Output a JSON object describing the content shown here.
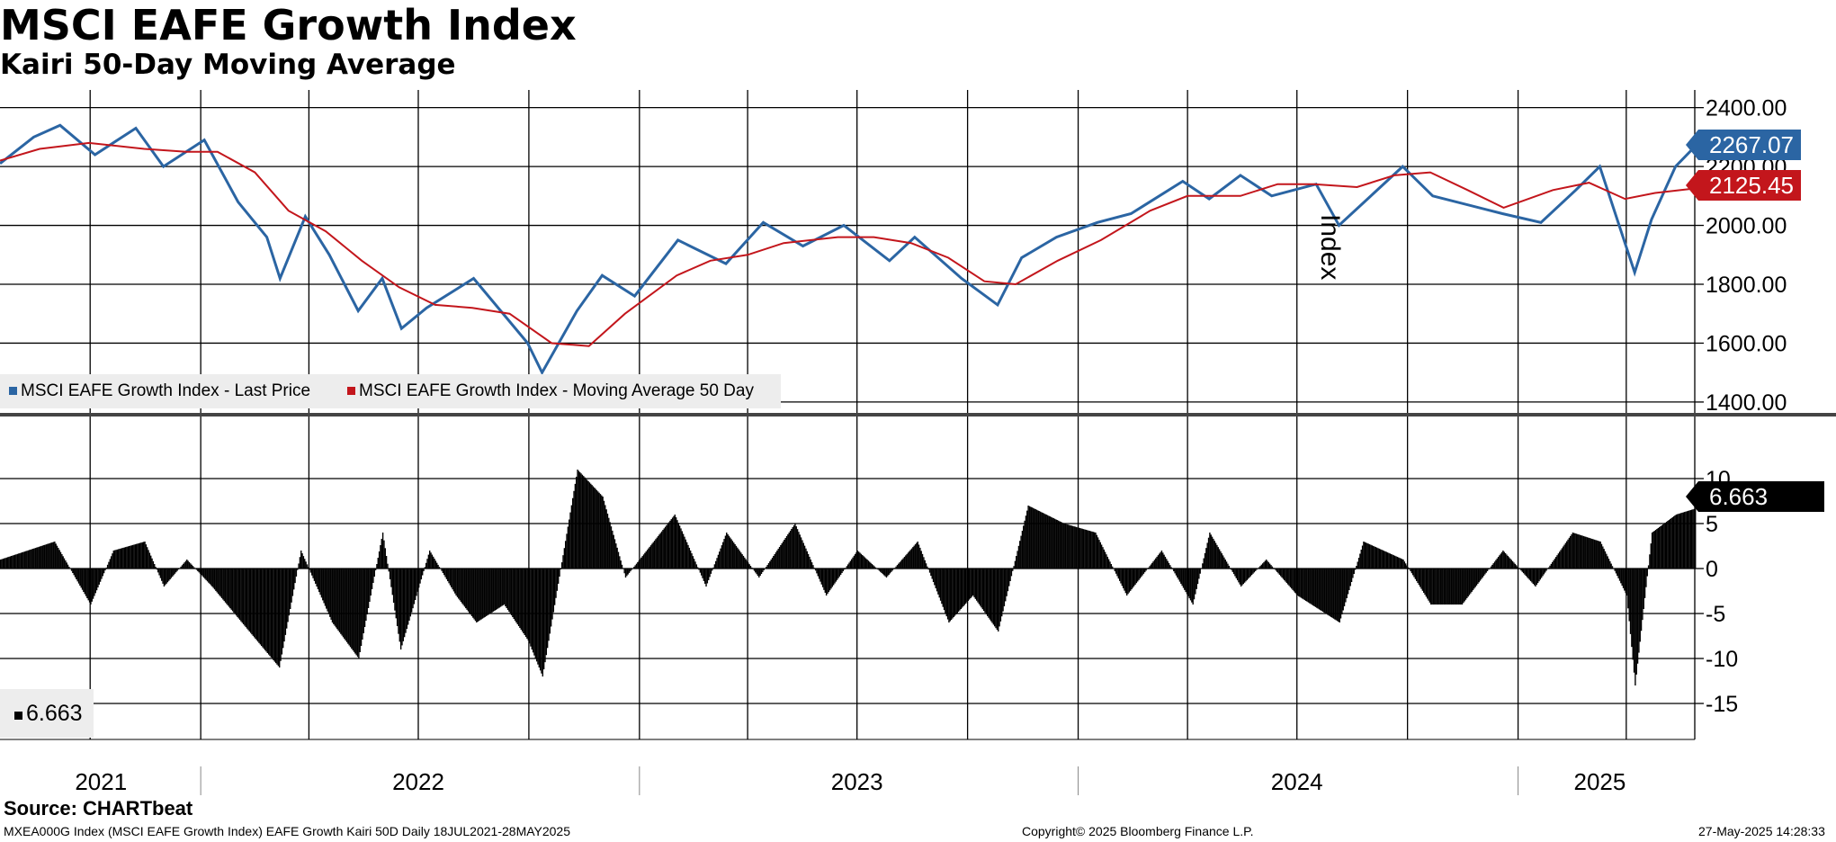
{
  "title": "MSCI EAFE Growth Index",
  "subtitle": "Kairi 50-Day Moving Average",
  "colors": {
    "price": "#2b65a3",
    "ma": "#c3161c",
    "kairi": "#000000",
    "grid": "#000000",
    "legend_bg": "#ededed"
  },
  "legend": {
    "price_label": "MSCI EAFE Growth Index - Last Price",
    "ma_label": "MSCI EAFE Growth Index - Moving Average 50 Day",
    "kairi_label": "6.663"
  },
  "value_tags": {
    "price": "2267.07",
    "ma": "2125.45",
    "kairi": "6.663"
  },
  "source": "Source: CHARTbeat",
  "footer": {
    "left": "MXEA000G Index (MSCI EAFE Growth Index) EAFE Growth Kairi 50D  Daily 18JUL2021-28MAY2025",
    "center": "Copyright© 2025 Bloomberg Finance L.P.",
    "right": "27-May-2025 14:28:33"
  },
  "chart_data": [
    {
      "type": "line",
      "ylabel": "Index",
      "ylim": [
        1360,
        2460
      ],
      "y_ticks": [
        "1400.00",
        "1600.00",
        "1800.00",
        "2000.00",
        "2200.00",
        "2400.00"
      ],
      "x_labels": [
        "2021",
        "2022",
        "2023",
        "2024",
        "2025"
      ],
      "x_range": [
        "2021-07-18",
        "2025-05-28"
      ],
      "series": [
        {
          "name": "MSCI EAFE Growth Index - Last Price",
          "key": "price",
          "x": [
            "2021-07-18",
            "2021-08-15",
            "2021-09-06",
            "2021-10-05",
            "2021-11-08",
            "2021-12-01",
            "2022-01-04",
            "2022-02-01",
            "2022-02-25",
            "2022-03-08",
            "2022-03-29",
            "2022-04-18",
            "2022-05-12",
            "2022-06-01",
            "2022-06-17",
            "2022-07-08",
            "2022-08-16",
            "2022-09-30",
            "2022-10-12",
            "2022-11-10",
            "2022-12-01",
            "2022-12-28",
            "2023-02-02",
            "2023-03-14",
            "2023-04-14",
            "2023-05-17",
            "2023-06-20",
            "2023-07-28",
            "2023-08-18",
            "2023-09-26",
            "2023-10-26",
            "2023-11-15",
            "2023-12-14",
            "2024-01-17",
            "2024-02-14",
            "2024-03-28",
            "2024-04-19",
            "2024-05-15",
            "2024-06-10",
            "2024-07-17",
            "2024-08-05",
            "2024-09-27",
            "2024-10-22",
            "2024-12-19",
            "2025-01-20",
            "2025-02-18",
            "2025-03-10",
            "2025-04-08",
            "2025-04-22",
            "2025-05-12",
            "2025-05-28"
          ],
          "y": [
            2210,
            2300,
            2340,
            2240,
            2330,
            2200,
            2290,
            2080,
            1960,
            1820,
            2030,
            1900,
            1710,
            1820,
            1650,
            1720,
            1820,
            1600,
            1500,
            1710,
            1830,
            1760,
            1950,
            1870,
            2010,
            1930,
            2000,
            1880,
            1960,
            1820,
            1730,
            1890,
            1960,
            2010,
            2040,
            2150,
            2090,
            2170,
            2100,
            2140,
            2000,
            2200,
            2100,
            2040,
            2010,
            2120,
            2200,
            1840,
            2020,
            2200,
            2267.07
          ]
        },
        {
          "name": "MSCI EAFE Growth Index - Moving Average 50 Day",
          "key": "ma",
          "x": [
            "2021-07-18",
            "2021-08-20",
            "2021-09-30",
            "2021-11-15",
            "2021-12-20",
            "2022-01-15",
            "2022-02-15",
            "2022-03-15",
            "2022-04-15",
            "2022-05-15",
            "2022-06-15",
            "2022-07-15",
            "2022-08-15",
            "2022-09-15",
            "2022-10-20",
            "2022-11-20",
            "2022-12-20",
            "2023-02-01",
            "2023-03-01",
            "2023-04-01",
            "2023-05-01",
            "2023-06-15",
            "2023-07-15",
            "2023-08-15",
            "2023-09-15",
            "2023-10-15",
            "2023-11-10",
            "2023-12-15",
            "2024-01-20",
            "2024-03-01",
            "2024-04-01",
            "2024-05-15",
            "2024-06-15",
            "2024-07-15",
            "2024-08-20",
            "2024-09-20",
            "2024-10-20",
            "2024-11-20",
            "2024-12-20",
            "2025-01-30",
            "2025-03-01",
            "2025-03-31",
            "2025-04-25",
            "2025-05-28"
          ],
          "y": [
            2220,
            2260,
            2280,
            2260,
            2250,
            2250,
            2180,
            2050,
            1980,
            1880,
            1790,
            1730,
            1720,
            1700,
            1600,
            1590,
            1700,
            1830,
            1880,
            1900,
            1940,
            1960,
            1960,
            1940,
            1890,
            1810,
            1800,
            1880,
            1950,
            2050,
            2100,
            2100,
            2140,
            2140,
            2130,
            2170,
            2180,
            2120,
            2060,
            2120,
            2145,
            2090,
            2110,
            2125.45
          ]
        }
      ]
    },
    {
      "type": "bar",
      "ylim": [
        -19,
        17
      ],
      "y_ticks": [
        "-15",
        "-10",
        "-5",
        "0",
        "5",
        "10"
      ],
      "series": [
        {
          "name": "6.663",
          "key": "kairi",
          "x": [
            "2021-07-18",
            "2021-09-01",
            "2021-10-01",
            "2021-10-20",
            "2021-11-15",
            "2021-12-01",
            "2021-12-20",
            "2022-01-10",
            "2022-02-10",
            "2022-03-07",
            "2022-03-25",
            "2022-04-20",
            "2022-05-12",
            "2022-06-01",
            "2022-06-16",
            "2022-07-10",
            "2022-08-01",
            "2022-08-18",
            "2022-09-10",
            "2022-09-30",
            "2022-10-12",
            "2022-11-10",
            "2022-12-01",
            "2022-12-20",
            "2023-01-30",
            "2023-02-25",
            "2023-03-14",
            "2023-04-10",
            "2023-05-10",
            "2023-06-05",
            "2023-07-01",
            "2023-07-25",
            "2023-08-20",
            "2023-09-15",
            "2023-10-05",
            "2023-10-26",
            "2023-11-20",
            "2023-12-20",
            "2024-01-15",
            "2024-02-10",
            "2024-03-10",
            "2024-04-05",
            "2024-04-19",
            "2024-05-15",
            "2024-06-05",
            "2024-07-01",
            "2024-08-05",
            "2024-08-25",
            "2024-09-27",
            "2024-10-20",
            "2024-11-15",
            "2024-12-19",
            "2025-01-15",
            "2025-02-15",
            "2025-03-10",
            "2025-04-01",
            "2025-04-08",
            "2025-04-22",
            "2025-05-12",
            "2025-05-28"
          ],
          "y": [
            1,
            3,
            -4,
            2,
            3,
            -2,
            1,
            -2,
            -7,
            -11,
            2,
            -6,
            -10,
            4,
            -9,
            2,
            -3,
            -6,
            -4,
            -8,
            -12,
            11,
            8,
            -1,
            6,
            -2,
            4,
            -1,
            5,
            -3,
            2,
            -1,
            3,
            -6,
            -3,
            -7,
            7,
            5,
            4,
            -3,
            2,
            -4,
            4,
            -2,
            1,
            -3,
            -6,
            3,
            1,
            -4,
            -4,
            2,
            -2,
            4,
            3,
            -3,
            -13,
            4,
            6,
            6.663
          ]
        }
      ]
    }
  ]
}
